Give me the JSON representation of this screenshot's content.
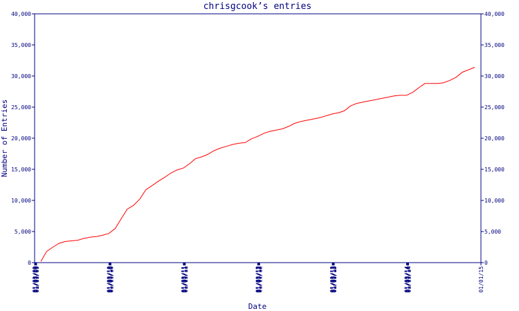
{
  "chart_data": {
    "type": "line",
    "title": "chrisgcook’s entries",
    "x_label": "Date",
    "y_label": "Number of Entries",
    "xlim": [
      "01/01/09",
      "01/01/15"
    ],
    "xticks": [
      "01/01/09",
      "01/03/09",
      "01/05/09",
      "01/07/09",
      "01/09/09",
      "01/11/09",
      "01/01/10",
      "01/03/10",
      "01/05/10",
      "01/07/10",
      "01/09/10",
      "01/11/10",
      "01/01/11",
      "01/03/11",
      "01/05/11",
      "01/07/11",
      "01/09/11",
      "01/11/11",
      "01/01/12",
      "01/03/12",
      "01/05/12",
      "01/07/12",
      "01/09/12",
      "01/11/12",
      "01/01/13",
      "01/03/13",
      "01/05/13",
      "01/07/13",
      "01/09/13",
      "01/11/13",
      "01/01/14",
      "01/03/14",
      "01/05/14",
      "01/07/14",
      "01/09/14",
      "01/11/14",
      "01/01/15"
    ],
    "ylim": [
      0,
      40000
    ],
    "yticks": [
      0,
      {
        "value": 5000,
        "label": "5,000"
      },
      {
        "value": 10000,
        "label": "10,000"
      },
      {
        "value": 15000,
        "label": "15,000"
      },
      {
        "value": 20000,
        "label": "20,000"
      },
      {
        "value": 25000,
        "label": "25,000"
      },
      {
        "value": 30000,
        "label": "30,000"
      },
      {
        "value": 35000,
        "label": "35,000"
      },
      {
        "value": 40000,
        "label": "40,000"
      }
    ],
    "y2lim": [
      0,
      40000
    ],
    "y2ticks": [
      0,
      {
        "value": 5000,
        "label": "5,000"
      },
      {
        "value": 10000,
        "label": "10,000"
      },
      {
        "value": 15000,
        "label": "15,000"
      },
      {
        "value": 20000,
        "label": "20,000"
      },
      {
        "value": 25000,
        "label": "25,000"
      },
      {
        "value": 30000,
        "label": "30,000"
      },
      {
        "value": 35000,
        "label": "35,000"
      },
      {
        "value": 40000,
        "label": "40,000"
      }
    ],
    "x": [
      "02/01/09",
      "03/01/09",
      "04/01/09",
      "05/01/09",
      "06/01/09",
      "07/01/09",
      "08/01/09",
      "09/01/09",
      "10/01/09",
      "11/01/09",
      "12/01/09",
      "01/01/10",
      "02/01/10",
      "03/01/10",
      "04/01/10",
      "05/01/10",
      "06/01/10",
      "07/01/10",
      "08/01/10",
      "09/01/10",
      "10/01/10",
      "11/01/10",
      "12/01/10",
      "01/01/11",
      "02/01/11",
      "03/01/11",
      "04/01/11",
      "05/01/11",
      "06/01/11",
      "07/01/11",
      "08/01/11",
      "09/01/11",
      "10/01/11",
      "11/01/11",
      "12/01/11",
      "01/01/12",
      "02/01/12",
      "03/01/12",
      "04/01/12",
      "05/01/12",
      "06/01/12",
      "07/01/12",
      "08/01/12",
      "09/01/12",
      "10/01/12",
      "11/01/12",
      "12/01/12",
      "01/01/13",
      "02/01/13",
      "03/01/13",
      "04/01/13",
      "05/01/13",
      "06/01/13",
      "07/01/13",
      "08/01/13",
      "09/01/13",
      "10/01/13",
      "11/01/13",
      "12/01/13",
      "01/01/14",
      "02/01/14",
      "03/01/14",
      "04/01/14",
      "05/01/14",
      "06/01/14",
      "07/01/14",
      "08/01/14",
      "09/01/14",
      "10/01/14",
      "11/01/14",
      "12/01/14"
    ],
    "series": [
      {
        "name": "entries",
        "color": "#ff0000",
        "values": [
          200,
          1800,
          2500,
          3100,
          3400,
          3500,
          3600,
          3900,
          4100,
          4200,
          4400,
          4700,
          5500,
          7000,
          8600,
          9200,
          10200,
          11700,
          12400,
          13100,
          13700,
          14400,
          14900,
          15200,
          15900,
          16700,
          17000,
          17400,
          18000,
          18400,
          18700,
          19000,
          19200,
          19300,
          19900,
          20300,
          20800,
          21100,
          21300,
          21500,
          21900,
          22400,
          22700,
          22900,
          23100,
          23300,
          23600,
          23900,
          24100,
          24400,
          25200,
          25600,
          25800,
          26000,
          26200,
          26400,
          26600,
          26800,
          26900,
          26900,
          27400,
          28100,
          28800,
          28800,
          28800,
          28900,
          29300,
          29800,
          30600,
          31000,
          31400
        ]
      }
    ]
  }
}
